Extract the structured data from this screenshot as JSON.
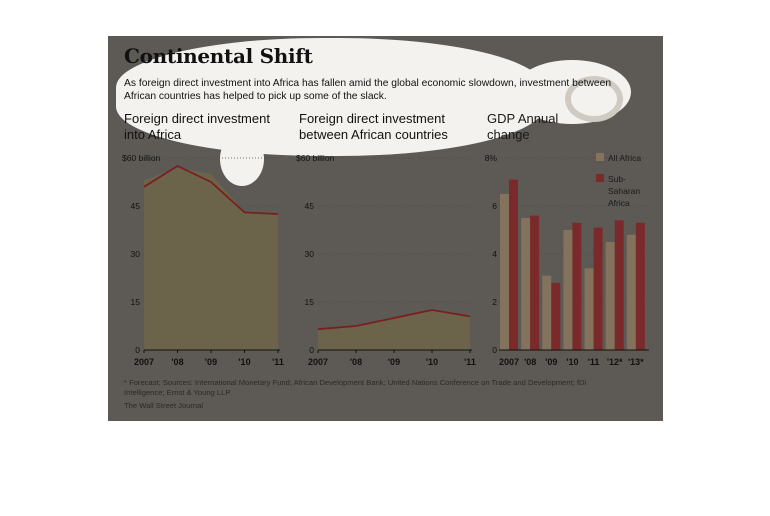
{
  "title": "Continental Shift",
  "subtitle": "As foreign direct investment into Africa has fallen amid the global economic slowdown, investment between African countries has helped to pick up some of the slack.",
  "footnote": "* Forecast; Sources: International Monetary Fund; African Development Bank; United Nations Conference on Trade and Development; fDi Intelligence; Ernst & Young LLP",
  "credit": "The Wall Street Journal",
  "colors": {
    "background": "#5d5a55",
    "area_fill": "#6b644b",
    "line": "#7a1f1f",
    "bar_all_africa": "#84735c",
    "bar_sub_saharan": "#7a2a2a",
    "text": "#111111"
  },
  "chart_data": [
    {
      "type": "area",
      "title": "Foreign direct investment into Africa",
      "ylim": [
        0,
        60
      ],
      "yticks": [
        "$60 billion",
        "45",
        "30",
        "15",
        "0"
      ],
      "categories": [
        "2007",
        "'08",
        "'09",
        "'10",
        "'11"
      ],
      "area": [
        53,
        57,
        55,
        43,
        42.5
      ],
      "line": [
        51,
        57.5,
        52.5,
        43,
        42.5
      ],
      "grid": true
    },
    {
      "type": "area",
      "title": "Foreign direct investment between African countries",
      "ylim": [
        0,
        60
      ],
      "yticks": [
        "$60 billion",
        "45",
        "30",
        "15",
        "0"
      ],
      "categories": [
        "2007",
        "'08",
        "'09",
        "'10",
        "'11"
      ],
      "area": [
        6.5,
        7.5,
        10,
        12.5,
        10.5
      ],
      "line": [
        6.5,
        7.5,
        10,
        12.5,
        10.5
      ],
      "grid": true
    },
    {
      "type": "bar",
      "title": "GDP Annual change",
      "ylim": [
        0,
        8
      ],
      "yticks": [
        "8%",
        "6",
        "4",
        "2",
        "0"
      ],
      "categories": [
        "2007",
        "'08",
        "'09",
        "'10",
        "'11",
        "'12*",
        "'13*"
      ],
      "series": [
        {
          "name": "All Africa",
          "values": [
            6.5,
            5.5,
            3.1,
            5.0,
            3.4,
            4.5,
            4.8
          ]
        },
        {
          "name": "Sub-Saharan Africa",
          "values": [
            7.1,
            5.6,
            2.8,
            5.3,
            5.1,
            5.4,
            5.3
          ]
        }
      ],
      "legend": "top-right",
      "grid": true
    }
  ]
}
